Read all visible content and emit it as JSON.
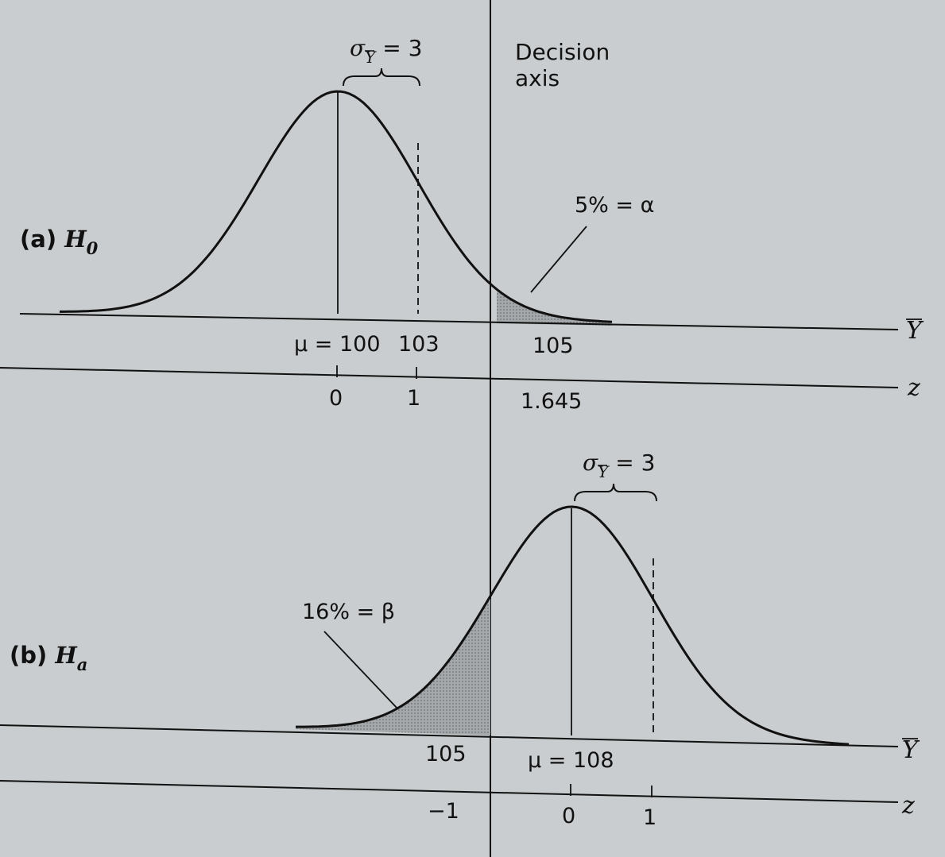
{
  "decision_axis": {
    "line1": "Decision",
    "line2": "axis"
  },
  "panel_a": {
    "label_prefix": "(a) ",
    "label_var": "H",
    "label_sub": "0",
    "sigma": {
      "sym": "σ",
      "sub": "Y",
      "rest": " = 3"
    },
    "alpha_label": "5% = α",
    "ybar_axis": {
      "mean": "μ = 100",
      "tick1": "103",
      "tick2": "105",
      "name": "Y"
    },
    "z_axis": {
      "tick0": "0",
      "tick1": "1",
      "tick2": "1.645",
      "name": "z"
    }
  },
  "panel_b": {
    "label_prefix": "(b) ",
    "label_var": "H",
    "label_sub": "a",
    "sigma": {
      "sym": "σ",
      "sub": "Y",
      "rest": " = 3"
    },
    "beta_label": "16% = β",
    "ybar_axis": {
      "tick1": "105",
      "mean": "μ = 108",
      "name": "Y"
    },
    "z_axis": {
      "tickm1": "−1",
      "tick0": "0",
      "tick1": "1",
      "name": "z"
    }
  },
  "colors": {
    "background": "#c9cdcf",
    "ink": "#111111",
    "shade": "#8f9396"
  }
}
